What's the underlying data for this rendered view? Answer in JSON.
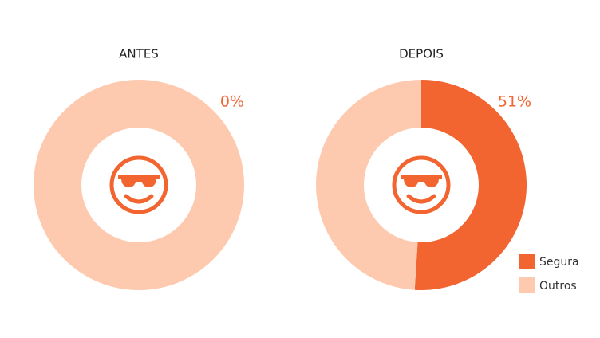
{
  "chart_data": [
    {
      "type": "donut",
      "title": "ANTES",
      "categories": [
        "Segura",
        "Outros"
      ],
      "values": [
        0,
        100
      ],
      "value_labels": [
        "0%",
        null
      ],
      "colors": [
        "#f26430",
        "#fdcab0"
      ]
    },
    {
      "type": "donut",
      "title": "DEPOIS",
      "categories": [
        "Segura",
        "Outros"
      ],
      "values": [
        51,
        49
      ],
      "value_labels": [
        "51%",
        null
      ],
      "colors": [
        "#f26430",
        "#fdcab0"
      ],
      "legend": "bottom-right"
    }
  ]
}
